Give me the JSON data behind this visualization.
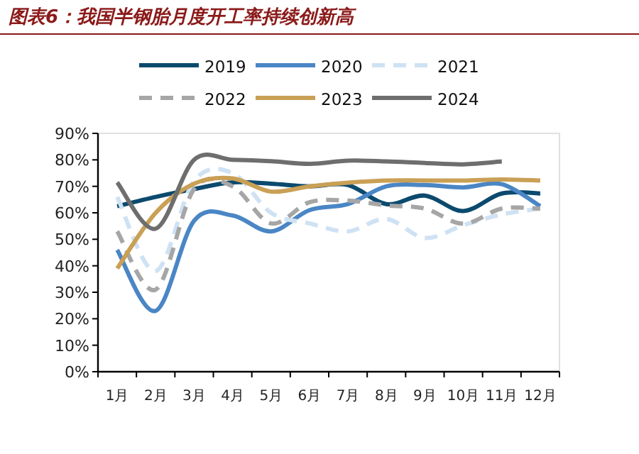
{
  "chart_data": {
    "type": "line",
    "title": "图表6：我国半钢胎月度开工率持续创新高",
    "categories": [
      "1月",
      "2月",
      "3月",
      "4月",
      "5月",
      "6月",
      "7月",
      "8月",
      "9月",
      "10月",
      "11月",
      "12月"
    ],
    "series": [
      {
        "name": "2019",
        "color": "#0b4a6e",
        "line_style": "solid",
        "values": [
          62.5,
          66,
          69,
          71.5,
          71,
          70,
          70.5,
          63.3,
          66.5,
          60.7,
          67.3,
          67.3
        ]
      },
      {
        "name": "2020",
        "color": "#4a86c5",
        "line_style": "solid",
        "values": [
          46,
          23,
          57,
          59,
          53,
          61,
          63.3,
          70,
          70.5,
          69.6,
          70.8,
          62.5
        ]
      },
      {
        "name": "2021",
        "color": "#cfe2f3",
        "line_style": "dashed",
        "values": [
          66,
          38,
          72,
          75,
          60,
          56,
          53,
          57.7,
          50.5,
          55.3,
          59.4,
          61.6
        ]
      },
      {
        "name": "2022",
        "color": "#a6a6a6",
        "line_style": "dashed",
        "values": [
          53,
          31,
          69,
          70,
          56,
          64,
          64.6,
          62.8,
          61.6,
          55.9,
          61.6,
          61.6
        ]
      },
      {
        "name": "2023",
        "color": "#c9a055",
        "line_style": "solid",
        "values": [
          39,
          60,
          71,
          73,
          68,
          70,
          71.4,
          72.2,
          72.2,
          72.2,
          72.6,
          72.2
        ]
      },
      {
        "name": "2024",
        "color": "#6e6e6e",
        "line_style": "solid",
        "values": [
          71.5,
          54,
          80,
          80,
          79.5,
          78.5,
          79.7,
          79.4,
          78.8,
          78.3,
          79.4,
          null
        ]
      }
    ],
    "ylim": [
      0,
      90
    ],
    "yticks": [
      {
        "value": 0,
        "label": "0%"
      },
      {
        "value": 10,
        "label": "10%"
      },
      {
        "value": 20,
        "label": "20%"
      },
      {
        "value": 30,
        "label": "30%"
      },
      {
        "value": 40,
        "label": "40%"
      },
      {
        "value": 50,
        "label": "50%"
      },
      {
        "value": 60,
        "label": "60%"
      },
      {
        "value": 70,
        "label": "70%"
      },
      {
        "value": 80,
        "label": "80%"
      },
      {
        "value": 90,
        "label": "90%"
      }
    ],
    "grid": false,
    "legend": "top"
  }
}
